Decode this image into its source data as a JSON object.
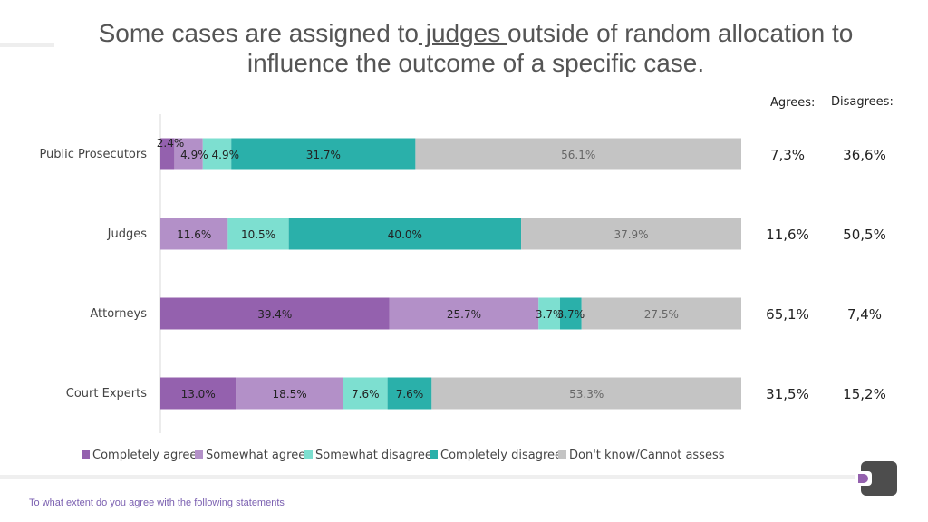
{
  "title": {
    "part1": "Some cases are assigned to",
    "underlined": " judges ",
    "part2": "outside of random allocation to influence the outcome of a specific case."
  },
  "columns": {
    "agrees": "Agrees:",
    "disagrees": "Disagrees:"
  },
  "footnote": "To what extent do you agree with the following statements",
  "logo_icon": "brand-logo-icon",
  "colors": {
    "completely_agree": "#9461ae",
    "somewhat_agree": "#b390c8",
    "somewhat_disagree": "#7ddfd0",
    "completely_disagree": "#2ab0aa",
    "dont_know": "#c4c4c4"
  },
  "chart_data": {
    "type": "bar",
    "orientation": "horizontal",
    "stacked": true,
    "categories": [
      "Public Prosecutors",
      "Judges",
      "Attorneys",
      "Court Experts"
    ],
    "xlim": [
      0,
      100
    ],
    "legend": "bottom",
    "series": [
      {
        "name": "Completely agree",
        "color": "#9461ae",
        "values": [
          2.4,
          0,
          39.4,
          13.0
        ],
        "labels": [
          "2.4%",
          "",
          "39.4%",
          "13.0%"
        ]
      },
      {
        "name": "Somewhat agree",
        "color": "#b390c8",
        "values": [
          4.9,
          11.6,
          25.7,
          18.5
        ],
        "labels": [
          "4.9%",
          "11.6%",
          "25.7%",
          "18.5%"
        ]
      },
      {
        "name": "Somewhat disagree",
        "color": "#7ddfd0",
        "values": [
          4.9,
          10.5,
          3.7,
          7.6
        ],
        "labels": [
          "4.9%",
          "10.5%",
          "3.7%",
          "7.6%"
        ]
      },
      {
        "name": "Completely disagree",
        "color": "#2ab0aa",
        "values": [
          31.7,
          40.0,
          3.7,
          7.6
        ],
        "labels": [
          "31.7%",
          "40.0%",
          "3.7%",
          "7.6%"
        ]
      },
      {
        "name": "Don't know/Cannot assess",
        "color": "#c4c4c4",
        "values": [
          56.1,
          37.9,
          27.5,
          53.3
        ],
        "labels": [
          "56.1%",
          "37.9%",
          "27.5%",
          "53.3%"
        ]
      }
    ],
    "agrees": [
      "7,3%",
      "11,6%",
      "65,1%",
      "31,5%"
    ],
    "disagrees": [
      "36,6%",
      "50,5%",
      "7,4%",
      "15,2%"
    ]
  }
}
